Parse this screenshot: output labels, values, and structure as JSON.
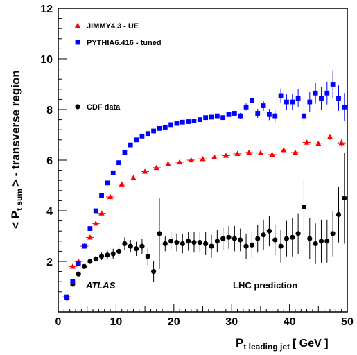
{
  "chart_data": {
    "type": "scatter",
    "xlabel": "P",
    "xlabel_sub": "t leading jet",
    "xlabel_unit": "[ GeV ]",
    "ylabel_pre": "< P",
    "ylabel_sub": "t sum",
    "ylabel_post": "> - transverse region",
    "xlim": [
      0,
      50
    ],
    "ylim": [
      0,
      12
    ],
    "xticks": [
      0,
      10,
      20,
      30,
      40,
      50
    ],
    "yticks": [
      2,
      4,
      6,
      8,
      10,
      12
    ],
    "legend": [
      {
        "name": "JIMMY4.3 - UE",
        "marker": "triangle",
        "color": "#ff0000"
      },
      {
        "name": "PYTHIA6.416 - tuned",
        "marker": "square",
        "color": "#0000ff"
      },
      {
        "name": "CDF data",
        "marker": "circle",
        "color": "#000000"
      }
    ],
    "annotations": {
      "left": "ATLAS",
      "right": "LHC prediction"
    },
    "series": [
      {
        "name": "JIMMY4.3 - UE",
        "marker": "triangle",
        "color": "#ff0000",
        "x": [
          1.5,
          2.5,
          3.5,
          4.5,
          5.5,
          6.5,
          7.5,
          9.0,
          11.0,
          13.0,
          15.0,
          17.0,
          19.0,
          21.0,
          23.0,
          25.0,
          27.0,
          29.0,
          31.0,
          33.0,
          35.0,
          37.0,
          39.0,
          41.0,
          43.0,
          45.0,
          47.0,
          49.0
        ],
        "y": [
          0.6,
          1.8,
          2.0,
          2.6,
          2.95,
          3.5,
          3.9,
          4.55,
          5.05,
          5.3,
          5.55,
          5.7,
          5.85,
          5.92,
          6.0,
          6.05,
          6.12,
          6.18,
          6.25,
          6.3,
          6.28,
          6.22,
          6.4,
          6.3,
          6.7,
          6.65,
          6.92,
          6.68
        ],
        "err": [
          0.05,
          0.05,
          0.05,
          0.05,
          0.05,
          0.05,
          0.05,
          0.06,
          0.06,
          0.06,
          0.06,
          0.06,
          0.06,
          0.06,
          0.06,
          0.06,
          0.06,
          0.06,
          0.06,
          0.06,
          0.06,
          0.06,
          0.08,
          0.08,
          0.1,
          0.1,
          0.12,
          0.14
        ]
      },
      {
        "name": "PYTHIA6.416 - tuned",
        "marker": "square",
        "color": "#0000ff",
        "x": [
          1.5,
          2.5,
          3.5,
          4.5,
          5.5,
          6.5,
          7.5,
          8.5,
          9.5,
          10.5,
          11.5,
          12.5,
          13.5,
          14.5,
          15.5,
          16.5,
          17.5,
          18.5,
          19.5,
          20.5,
          21.5,
          22.5,
          23.5,
          24.5,
          25.5,
          26.5,
          27.5,
          28.5,
          29.5,
          30.5,
          31.5,
          32.5,
          33.5,
          34.5,
          35.5,
          36.5,
          37.5,
          38.5,
          39.5,
          40.5,
          41.5,
          42.5,
          43.5,
          44.5,
          45.5,
          46.5,
          47.5,
          48.5,
          49.5
        ],
        "y": [
          0.6,
          1.2,
          1.9,
          2.6,
          3.3,
          4.0,
          4.6,
          5.1,
          5.5,
          5.9,
          6.3,
          6.6,
          6.8,
          6.95,
          7.05,
          7.15,
          7.25,
          7.3,
          7.4,
          7.45,
          7.5,
          7.52,
          7.55,
          7.6,
          7.68,
          7.7,
          7.75,
          7.68,
          7.8,
          7.85,
          7.75,
          8.1,
          8.35,
          7.85,
          8.15,
          7.8,
          7.75,
          8.55,
          8.3,
          8.3,
          8.45,
          7.75,
          8.3,
          8.65,
          8.45,
          8.65,
          9.0,
          8.45,
          8.1
        ],
        "err": [
          0.03,
          0.03,
          0.04,
          0.04,
          0.04,
          0.05,
          0.05,
          0.05,
          0.05,
          0.05,
          0.05,
          0.05,
          0.05,
          0.05,
          0.05,
          0.05,
          0.05,
          0.05,
          0.05,
          0.05,
          0.06,
          0.06,
          0.06,
          0.06,
          0.07,
          0.07,
          0.08,
          0.08,
          0.1,
          0.1,
          0.12,
          0.14,
          0.15,
          0.18,
          0.2,
          0.22,
          0.25,
          0.28,
          0.3,
          0.32,
          0.35,
          0.4,
          0.4,
          0.42,
          0.45,
          0.45,
          0.55,
          0.5,
          0.55
        ]
      },
      {
        "name": "CDF data",
        "marker": "circle",
        "color": "#000000",
        "x": [
          1.5,
          2.5,
          3.5,
          4.5,
          5.5,
          6.5,
          7.5,
          8.5,
          9.5,
          10.5,
          11.5,
          12.5,
          13.5,
          14.5,
          15.5,
          16.5,
          17.5,
          18.5,
          19.5,
          20.5,
          21.5,
          22.5,
          23.5,
          24.5,
          25.5,
          26.5,
          27.5,
          28.5,
          29.5,
          30.5,
          31.5,
          32.5,
          33.5,
          34.5,
          35.5,
          36.5,
          37.5,
          38.5,
          39.5,
          40.5,
          41.5,
          42.5,
          43.5,
          44.5,
          45.5,
          46.5,
          47.5,
          48.5,
          49.5
        ],
        "y": [
          0.55,
          1.1,
          1.5,
          1.8,
          2.0,
          2.1,
          2.2,
          2.25,
          2.3,
          2.4,
          2.7,
          2.6,
          2.5,
          2.6,
          2.2,
          1.6,
          3.1,
          2.7,
          2.8,
          2.75,
          2.7,
          2.8,
          2.75,
          2.75,
          2.7,
          2.6,
          2.8,
          2.9,
          2.95,
          2.9,
          2.85,
          2.6,
          2.65,
          2.9,
          3.05,
          3.2,
          2.85,
          2.6,
          2.9,
          2.95,
          3.1,
          4.15,
          2.9,
          2.7,
          2.8,
          2.8,
          3.1,
          3.85,
          4.5
        ],
        "err": [
          0.05,
          0.06,
          0.07,
          0.08,
          0.1,
          0.12,
          0.15,
          0.18,
          0.2,
          0.22,
          0.25,
          0.25,
          0.28,
          0.3,
          0.35,
          0.4,
          1.4,
          0.3,
          0.35,
          0.35,
          0.38,
          0.38,
          0.4,
          0.4,
          0.45,
          0.45,
          0.45,
          0.45,
          0.45,
          0.5,
          0.45,
          0.5,
          0.5,
          0.55,
          0.6,
          0.6,
          0.6,
          0.65,
          0.7,
          0.75,
          0.8,
          1.1,
          0.8,
          0.8,
          0.85,
          0.85,
          0.9,
          1.1,
          1.8
        ]
      }
    ]
  }
}
